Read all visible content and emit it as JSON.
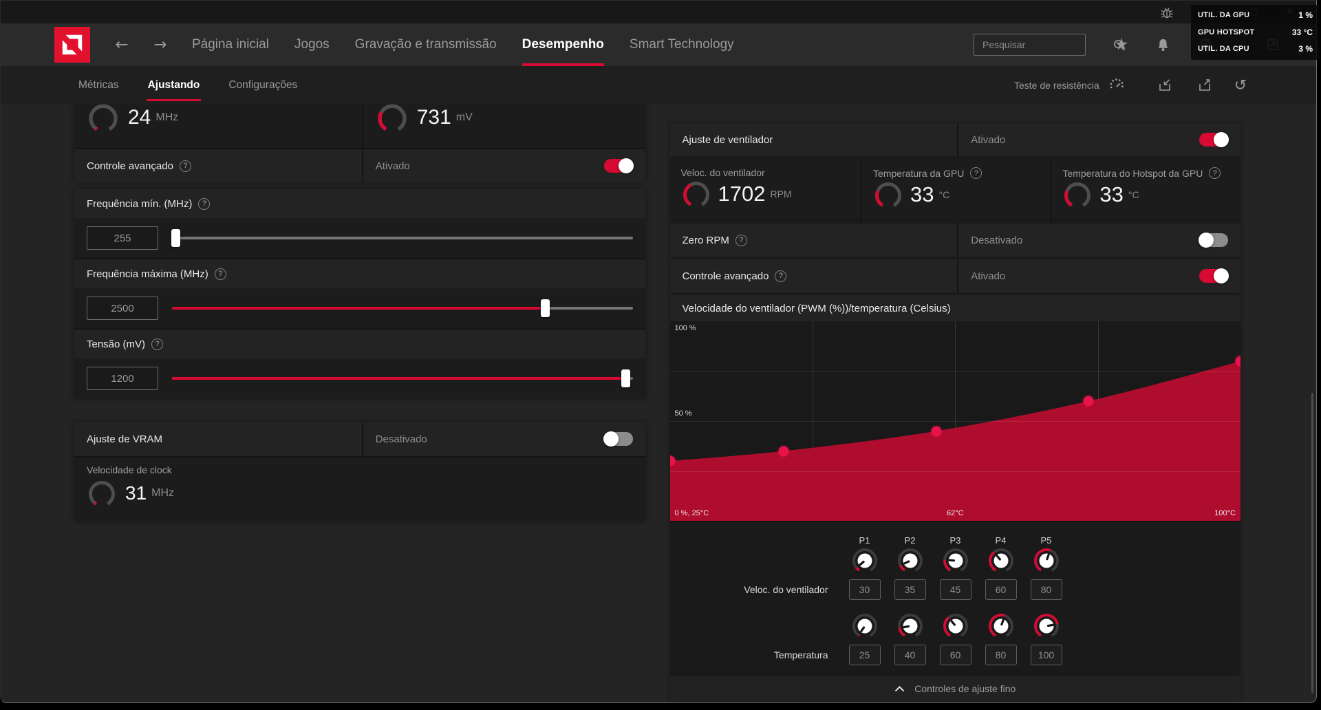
{
  "titlebar": {
    "minimize": "─",
    "maximize": "▢",
    "close": "✕"
  },
  "overlay": {
    "rows": [
      {
        "label": "UTIL. DA GPU",
        "value": "1 %"
      },
      {
        "label": "GPU HOTSPOT",
        "value": "33 °C"
      },
      {
        "label": "UTIL. DA CPU",
        "value": "3 %"
      }
    ]
  },
  "nav": {
    "items": [
      {
        "label": "Página inicial",
        "active": false
      },
      {
        "label": "Jogos",
        "active": false
      },
      {
        "label": "Gravação e transmissão",
        "active": false
      },
      {
        "label": "Desempenho",
        "active": true
      },
      {
        "label": "Smart Technology",
        "active": false
      }
    ],
    "search_placeholder": "Pesquisar"
  },
  "subnav": {
    "items": [
      {
        "label": "Métricas",
        "active": false
      },
      {
        "label": "Ajustando",
        "active": true
      },
      {
        "label": "Configurações",
        "active": false
      }
    ],
    "stress_test": "Teste de resistência"
  },
  "tuning": {
    "gpu": {
      "freq_gauge": {
        "value": "24",
        "unit": "MHz",
        "fraction": 0.03
      },
      "volt_gauge": {
        "value": "731",
        "unit": "mV",
        "fraction": 0.3
      },
      "advanced": {
        "label": "Controle avançado",
        "state": "Ativado",
        "on": true
      },
      "sliders": [
        {
          "label": "Frequência mín. (MHz)",
          "value": "255",
          "pct": 0.8
        },
        {
          "label": "Frequência máxima (MHz)",
          "value": "2500",
          "pct": 81
        },
        {
          "label": "Tensão (mV)",
          "value": "1200",
          "pct": 98.5
        }
      ]
    },
    "vram": {
      "title": "Ajuste de VRAM",
      "state": "Desativado",
      "on": false,
      "clock_label": "Velocidade de clock",
      "clock_gauge": {
        "value": "31",
        "unit": "MHz",
        "fraction": 0.03
      }
    },
    "fan": {
      "title": "Ajuste de ventilador",
      "state": "Ativado",
      "on": true,
      "gauges": [
        {
          "label": "Veloc. do ventilador",
          "value": "1702",
          "unit": "RPM",
          "fraction": 0.4,
          "help": false
        },
        {
          "label": "Temperatura da GPU",
          "value": "33",
          "unit": "°C",
          "fraction": 0.28,
          "help": true
        },
        {
          "label": "Temperatura do Hotspot da GPU",
          "value": "33",
          "unit": "°C",
          "fraction": 0.28,
          "help": true
        }
      ],
      "zero_rpm": {
        "label": "Zero RPM",
        "state": "Desativado",
        "on": false
      },
      "advanced": {
        "label": "Controle avançado",
        "state": "Ativado",
        "on": true
      },
      "footer": "Controles de ajuste fino"
    },
    "curve_editor": {
      "point_labels": [
        "P1",
        "P2",
        "P3",
        "P4",
        "P5"
      ],
      "speed_label": "Veloc. do ventilador",
      "speeds": [
        30,
        35,
        45,
        60,
        80
      ],
      "temp_label": "Temperatura",
      "temps": [
        25,
        40,
        60,
        80,
        100
      ]
    }
  },
  "chart_data": {
    "type": "area",
    "title": "Velocidade do ventilador (PWM (%))/temperatura (Celsius)",
    "x": [
      25,
      40,
      60,
      80,
      100
    ],
    "y": [
      30,
      35,
      45,
      60,
      80
    ],
    "xlim": [
      25,
      100
    ],
    "ylim": [
      0,
      100
    ],
    "grid": true,
    "x_tick_labels": [
      "0 %, 25°C",
      "62°C",
      "100°C"
    ],
    "y_tick_labels": [
      "100 %",
      "50 %"
    ],
    "accent": "#D60A33",
    "fill_color": "#AF0D2E",
    "dot_color": "#E8134B"
  }
}
